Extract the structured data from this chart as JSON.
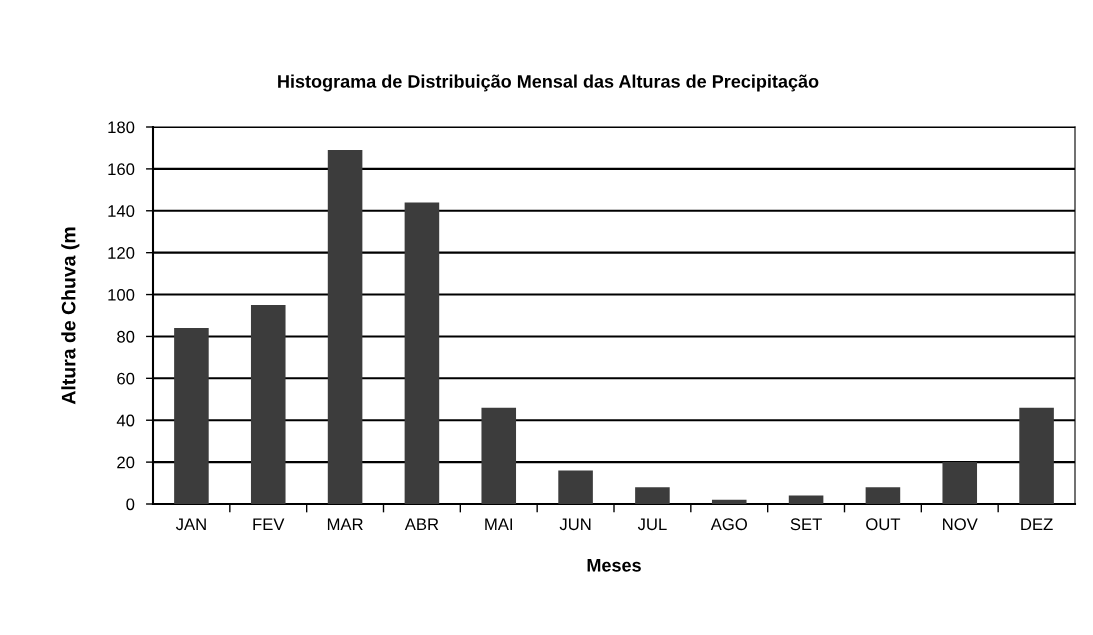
{
  "chart_data": {
    "type": "bar",
    "title": "Histograma de Distribuição Mensal das Alturas de Precipitação",
    "xlabel": "Meses",
    "ylabel": "Altura de Chuva (m",
    "categories": [
      "JAN",
      "FEV",
      "MAR",
      "ABR",
      "MAI",
      "JUN",
      "JUL",
      "AGO",
      "SET",
      "OUT",
      "NOV",
      "DEZ"
    ],
    "values": [
      84,
      95,
      169,
      144,
      46,
      16,
      8,
      2,
      4,
      8,
      20,
      46
    ],
    "color": "#3c3c3c",
    "ylim": [
      0,
      180
    ],
    "yticks": [
      0,
      20,
      40,
      60,
      80,
      100,
      120,
      140,
      160,
      180
    ],
    "grid": "y",
    "legend": false
  }
}
